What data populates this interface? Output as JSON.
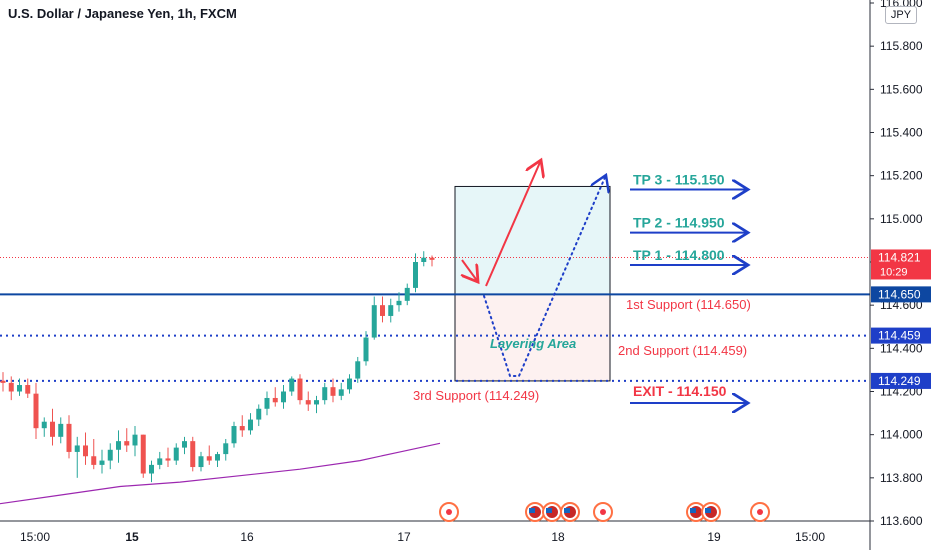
{
  "title": "U.S. Dollar / Japanese Yen, 1h, FXCM",
  "currency_badge": "JPY",
  "chart_data": {
    "type": "candlestick",
    "symbol": "USDJPY",
    "timeframe": "1h",
    "y_axis": {
      "min": 113.6,
      "max": 116.0,
      "ticks": [
        "116.000",
        "115.800",
        "115.600",
        "115.400",
        "115.200",
        "115.000",
        "114.800",
        "114.600",
        "114.400",
        "114.200",
        "114.000",
        "113.800",
        "113.600"
      ]
    },
    "x_axis": {
      "ticks": [
        "15:00",
        "15",
        "16",
        "17",
        "18",
        "19",
        "15:00"
      ]
    },
    "price_labels": [
      {
        "text": "114.821",
        "sub": "10:29",
        "value": 114.821,
        "color": "#f23645"
      },
      {
        "text": "114.650",
        "value": 114.65,
        "color": "#0d47a1"
      },
      {
        "text": "114.459",
        "value": 114.459,
        "color": "#1e3fc8"
      },
      {
        "text": "114.249",
        "value": 114.249,
        "color": "#1e3fc8"
      }
    ],
    "levels": [
      {
        "value": 114.65,
        "style": "solid",
        "color": "#0d47a1"
      },
      {
        "value": 114.459,
        "style": "dotted",
        "color": "#1e3fc8"
      },
      {
        "value": 114.249,
        "style": "dotted",
        "color": "#1e3fc8"
      },
      {
        "value": 114.821,
        "style": "dotted",
        "color": "#f23645"
      }
    ],
    "zones": {
      "target": {
        "from": 114.65,
        "to": 115.15,
        "color": "#e6f6f8"
      },
      "layering": {
        "from": 114.249,
        "to": 114.65,
        "color": "#fdf1f0"
      }
    },
    "annotations": [
      {
        "text": "TP 3 - 115.150",
        "value": 115.15,
        "color": "#26a69a"
      },
      {
        "text": "TP 2 - 114.950",
        "value": 114.95,
        "color": "#26a69a"
      },
      {
        "text": "TP 1 - 114.800",
        "value": 114.8,
        "color": "#26a69a"
      },
      {
        "text": "1st Support (114.650)",
        "value": 114.65,
        "color": "#f23645"
      },
      {
        "text": "2nd Support (114.459)",
        "value": 114.459,
        "color": "#f23645"
      },
      {
        "text": "3rd Support (114.249)",
        "value": 114.249,
        "color": "#f23645"
      },
      {
        "text": "EXIT - 114.150",
        "value": 114.15,
        "color": "#f23645"
      },
      {
        "text": "Layering Area",
        "value": 114.455,
        "color": "#26a69a"
      }
    ],
    "candles": [
      [
        114.25,
        114.29,
        114.2,
        114.24
      ],
      [
        114.24,
        114.27,
        114.16,
        114.2
      ],
      [
        114.2,
        114.26,
        114.18,
        114.23
      ],
      [
        114.23,
        114.26,
        114.17,
        114.19
      ],
      [
        114.19,
        114.24,
        113.98,
        114.03
      ],
      [
        114.03,
        114.08,
        113.99,
        114.06
      ],
      [
        114.06,
        114.12,
        113.95,
        113.99
      ],
      [
        113.99,
        114.08,
        113.96,
        114.05
      ],
      [
        114.05,
        114.09,
        113.89,
        113.92
      ],
      [
        113.92,
        113.99,
        113.8,
        113.95
      ],
      [
        113.95,
        114.01,
        113.86,
        113.9
      ],
      [
        113.9,
        113.98,
        113.84,
        113.86
      ],
      [
        113.86,
        113.93,
        113.82,
        113.88
      ],
      [
        113.88,
        113.96,
        113.84,
        113.93
      ],
      [
        113.93,
        114.02,
        113.87,
        113.97
      ],
      [
        113.97,
        114.03,
        113.92,
        113.95
      ],
      [
        113.95,
        114.04,
        113.9,
        114.0
      ],
      [
        114.0,
        114.0,
        113.8,
        113.82
      ],
      [
        113.82,
        113.88,
        113.78,
        113.86
      ],
      [
        113.86,
        113.92,
        113.84,
        113.89
      ],
      [
        113.89,
        113.94,
        113.85,
        113.88
      ],
      [
        113.88,
        113.96,
        113.86,
        113.94
      ],
      [
        113.94,
        113.99,
        113.91,
        113.97
      ],
      [
        113.97,
        113.99,
        113.83,
        113.85
      ],
      [
        113.85,
        113.92,
        113.83,
        113.9
      ],
      [
        113.9,
        113.95,
        113.86,
        113.88
      ],
      [
        113.88,
        113.92,
        113.85,
        113.91
      ],
      [
        113.91,
        113.98,
        113.88,
        113.96
      ],
      [
        113.96,
        114.06,
        113.94,
        114.04
      ],
      [
        114.04,
        114.09,
        113.99,
        114.02
      ],
      [
        114.02,
        114.1,
        114.0,
        114.07
      ],
      [
        114.07,
        114.14,
        114.04,
        114.12
      ],
      [
        114.12,
        114.2,
        114.09,
        114.17
      ],
      [
        114.17,
        114.22,
        114.13,
        114.15
      ],
      [
        114.15,
        114.23,
        114.12,
        114.2
      ],
      [
        114.2,
        114.27,
        114.18,
        114.26
      ],
      [
        114.26,
        114.28,
        114.14,
        114.16
      ],
      [
        114.16,
        114.2,
        114.11,
        114.14
      ],
      [
        114.14,
        114.18,
        114.1,
        114.16
      ],
      [
        114.16,
        114.24,
        114.14,
        114.22
      ],
      [
        114.22,
        114.26,
        114.15,
        114.18
      ],
      [
        114.18,
        114.24,
        114.16,
        114.21
      ],
      [
        114.21,
        114.28,
        114.19,
        114.26
      ],
      [
        114.26,
        114.36,
        114.24,
        114.34
      ],
      [
        114.34,
        114.48,
        114.32,
        114.45
      ],
      [
        114.45,
        114.64,
        114.44,
        114.6
      ],
      [
        114.6,
        114.64,
        114.52,
        114.55
      ],
      [
        114.55,
        114.63,
        114.52,
        114.6
      ],
      [
        114.6,
        114.66,
        114.57,
        114.62
      ],
      [
        114.62,
        114.7,
        114.6,
        114.68
      ],
      [
        114.68,
        114.84,
        114.66,
        114.8
      ],
      [
        114.8,
        114.85,
        114.78,
        114.82
      ],
      [
        114.82,
        114.83,
        114.78,
        114.81
      ]
    ],
    "moving_average": [
      [
        0,
        113.68
      ],
      [
        60,
        113.72
      ],
      [
        120,
        113.76
      ],
      [
        180,
        113.78
      ],
      [
        240,
        113.81
      ],
      [
        300,
        113.84
      ],
      [
        360,
        113.88
      ],
      [
        400,
        113.92
      ],
      [
        440,
        113.96
      ]
    ],
    "event_markers": [
      {
        "x": 449,
        "type": "flag"
      },
      {
        "x": 535,
        "type": "us"
      },
      {
        "x": 552,
        "type": "us"
      },
      {
        "x": 570,
        "type": "us"
      },
      {
        "x": 603,
        "type": "flag"
      },
      {
        "x": 696,
        "type": "us"
      },
      {
        "x": 711,
        "type": "us"
      },
      {
        "x": 760,
        "type": "flag"
      }
    ]
  }
}
